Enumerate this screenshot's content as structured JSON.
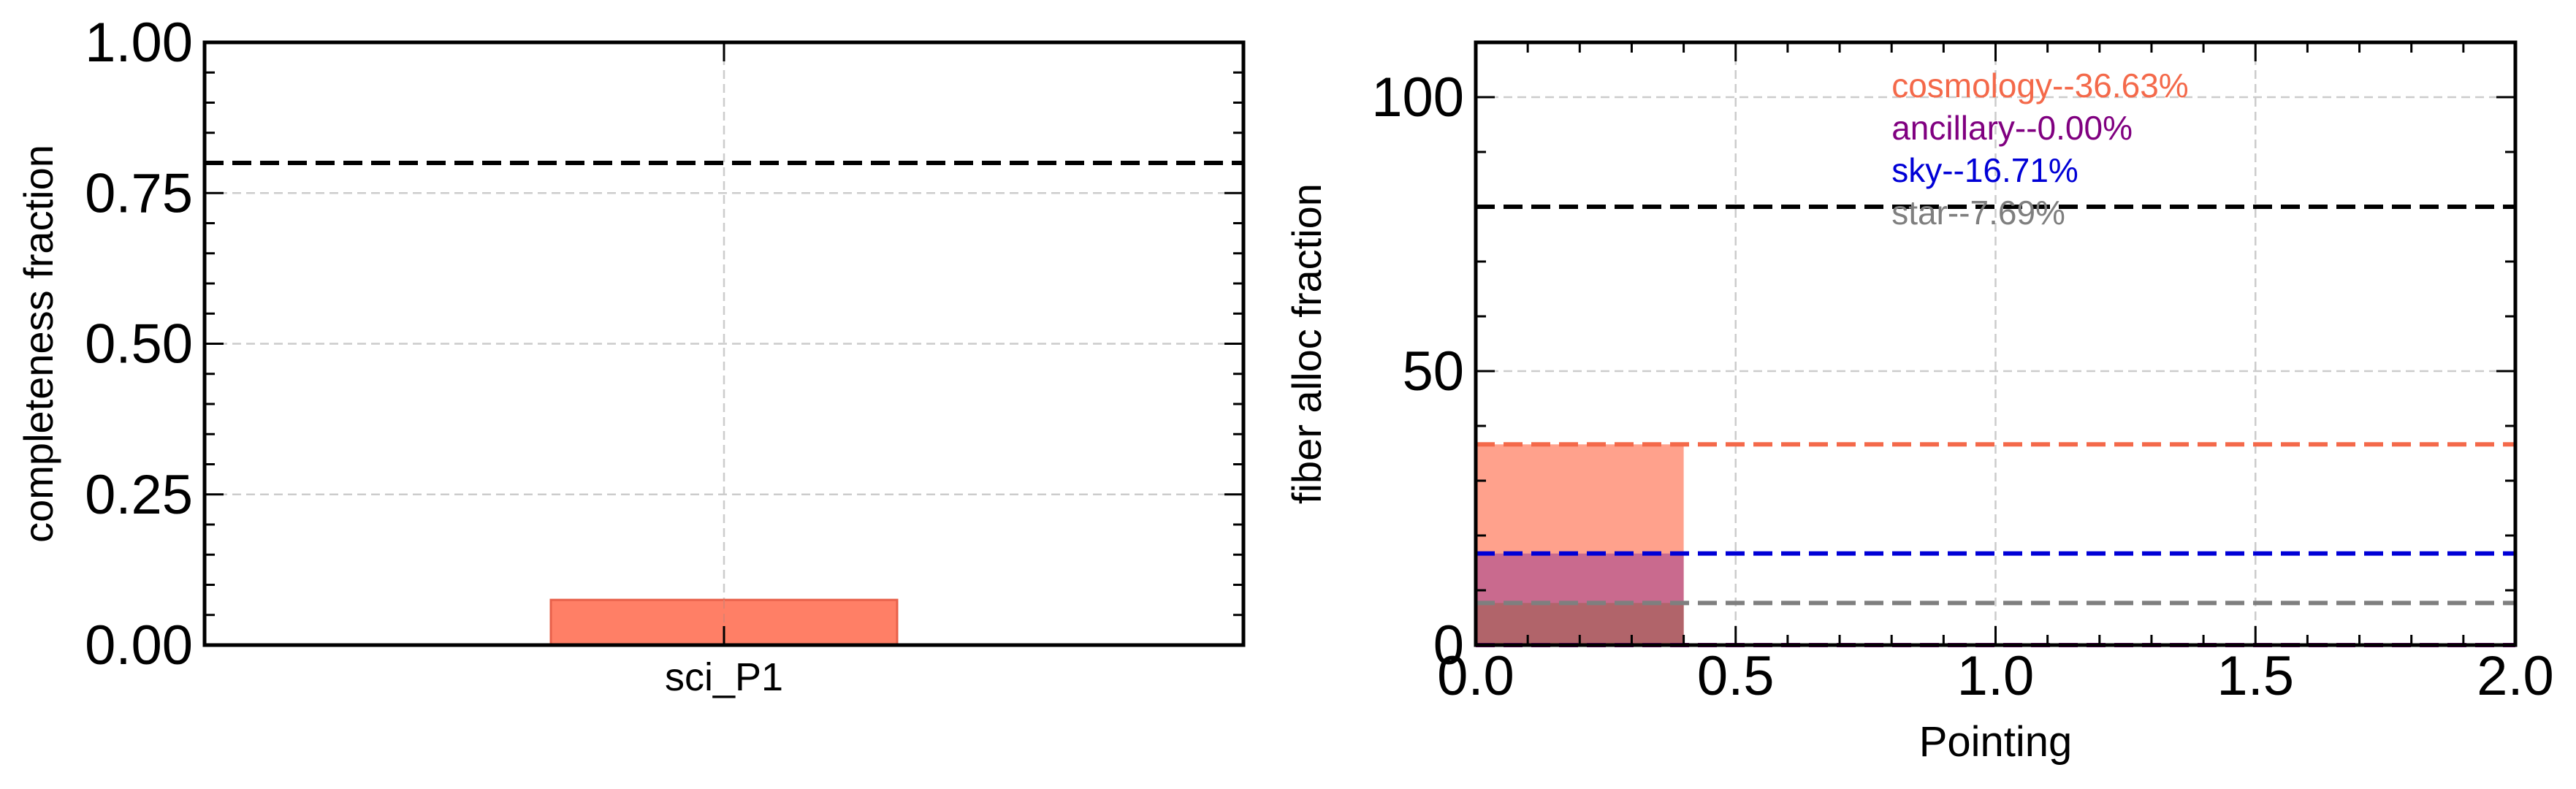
{
  "chart_data": [
    {
      "type": "bar",
      "xlabel": "",
      "ylabel": "completeness fraction",
      "categories": [
        "sci_P1"
      ],
      "values": [
        0.075
      ],
      "ylim": [
        0,
        1.0
      ],
      "yticks": [
        0.0,
        0.25,
        0.5,
        0.75,
        1.0
      ],
      "ytick_labels": [
        "0.00",
        "0.25",
        "0.50",
        "0.75",
        "1.00"
      ],
      "threshold": 0.8,
      "grid": true,
      "colors": {
        "bar_fill": "#ff7f66",
        "bar_edge": "#e8604a",
        "threshold": "#000000",
        "grid": "#cccccc"
      }
    },
    {
      "type": "bar",
      "xlabel": "Pointing",
      "ylabel": "fiber alloc fraction",
      "xlim": [
        0,
        2.0
      ],
      "ylim": [
        0,
        110
      ],
      "xticks": [
        0.0,
        0.5,
        1.0,
        1.5,
        2.0
      ],
      "xtick_labels": [
        "0.0",
        "0.5",
        "1.0",
        "1.5",
        "2.0"
      ],
      "yticks": [
        0,
        50,
        100
      ],
      "ytick_labels": [
        "0",
        "50",
        "100"
      ],
      "bar_x_range": [
        0,
        0.4
      ],
      "threshold": 80,
      "grid": true,
      "legend_position": "top-center",
      "series": [
        {
          "name": "cosmology--36.63%",
          "value": 36.63,
          "color": "#f4694a",
          "fill": "#ffa18c"
        },
        {
          "name": "ancillary--0.00%",
          "value": 0.0,
          "color": "#800080",
          "fill": "#800080"
        },
        {
          "name": "sky--16.71%",
          "value": 16.71,
          "color": "#0000d6",
          "fill": "#c96a8e"
        },
        {
          "name": "star--7.69%",
          "value": 7.69,
          "color": "#7f7f7f",
          "fill": "#b1646a"
        }
      ]
    }
  ]
}
